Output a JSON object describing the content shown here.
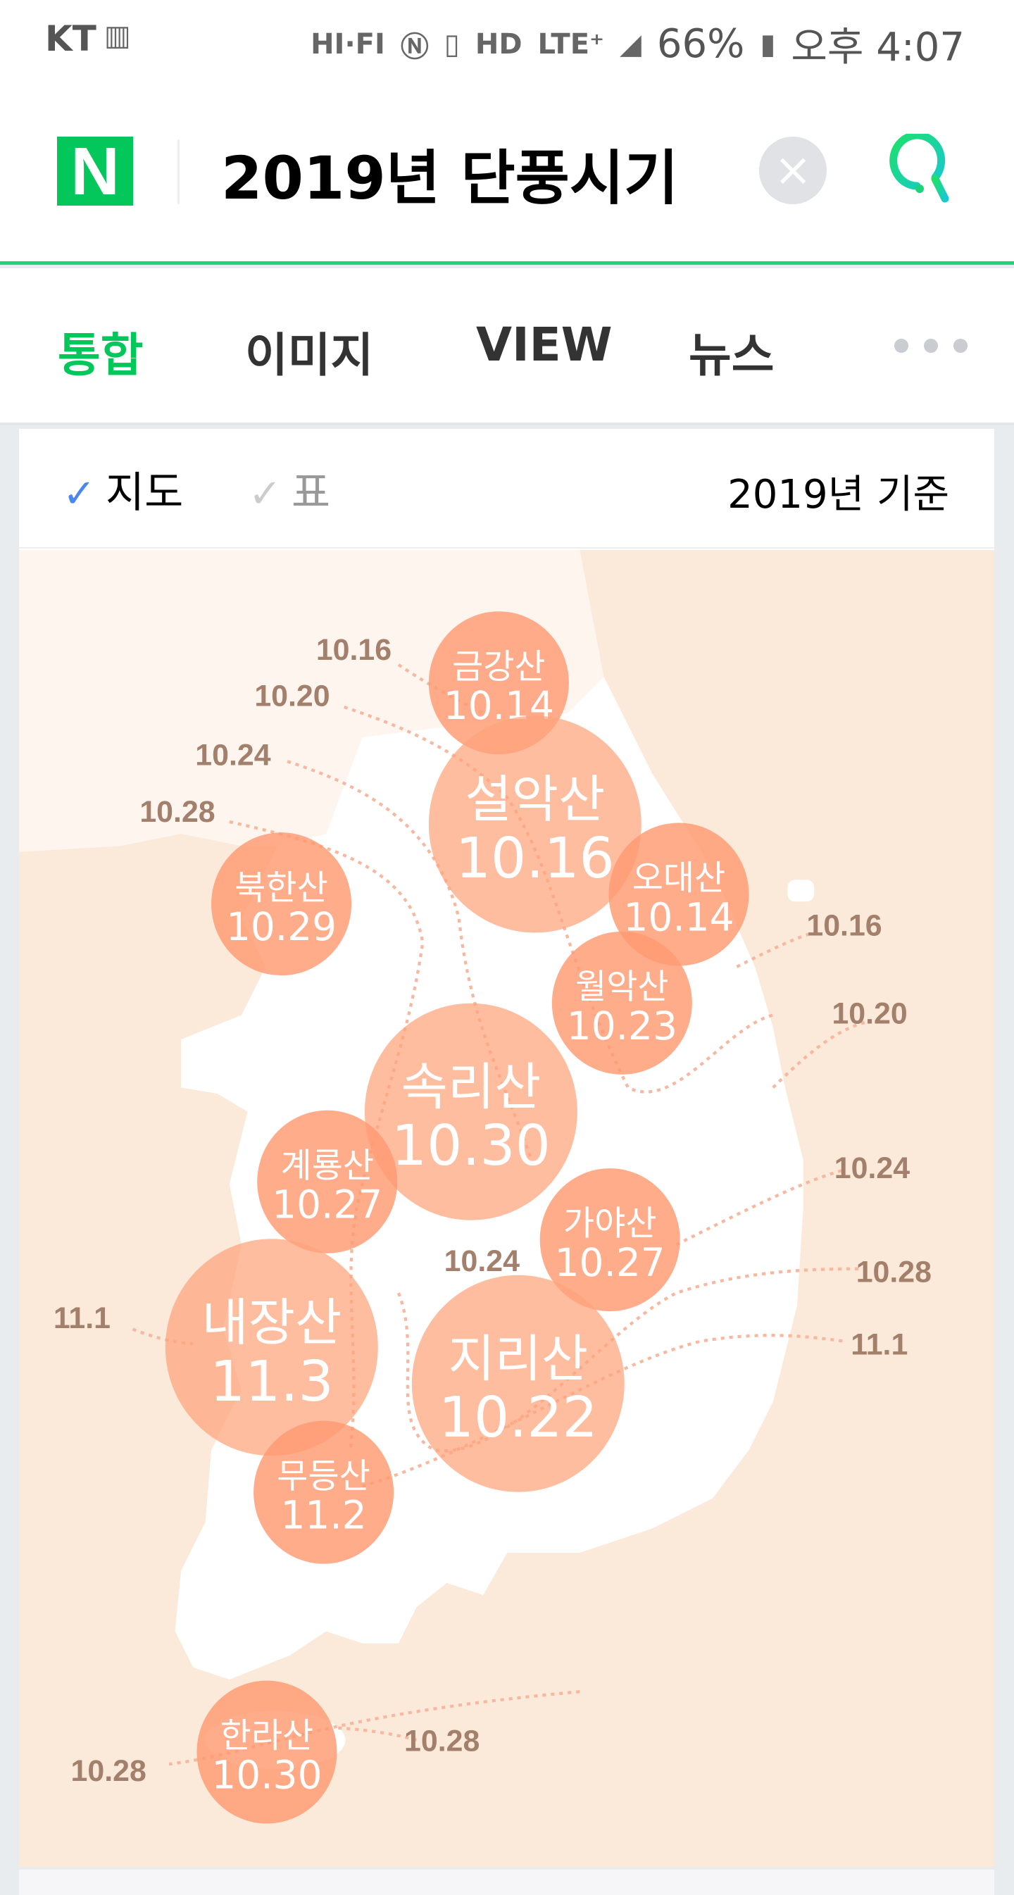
{
  "status_bar": {
    "carrier": "KT",
    "icons": [
      "hifi-icon",
      "nfc-icon",
      "vibrate-icon",
      "hd-voice-icon",
      "lte-plus-icon",
      "signal-icon"
    ],
    "battery": "66%",
    "time": "오후 4:07"
  },
  "header": {
    "logo": "N",
    "query": "2019년 단풍시기",
    "clear_icon": "close-icon",
    "search_icon": "search-icon"
  },
  "tabs": [
    {
      "label": "통합",
      "active": true
    },
    {
      "label": "이미지"
    },
    {
      "label": "VIEW"
    },
    {
      "label": "뉴스"
    }
  ],
  "filter": {
    "options": [
      {
        "label": "지도",
        "checked": true
      },
      {
        "label": "표",
        "checked": false
      }
    ],
    "basis": "2019년 기준"
  },
  "colors": {
    "brand": "#03c75a",
    "sea": "#fbe9d9",
    "land": "#ffffff",
    "circle": "#ff9a72",
    "isoline_label": "#a3806c"
  },
  "map": {
    "mountains": [
      {
        "name": "금강산",
        "date": "10.14",
        "size": "small"
      },
      {
        "name": "설악산",
        "date": "10.16",
        "size": "large"
      },
      {
        "name": "오대산",
        "date": "10.14",
        "size": "small"
      },
      {
        "name": "북한산",
        "date": "10.29",
        "size": "small"
      },
      {
        "name": "월악산",
        "date": "10.23",
        "size": "small"
      },
      {
        "name": "속리산",
        "date": "10.30",
        "size": "large"
      },
      {
        "name": "계룡산",
        "date": "10.27",
        "size": "small"
      },
      {
        "name": "가야산",
        "date": "10.27",
        "size": "small"
      },
      {
        "name": "내장산",
        "date": "11.3",
        "size": "large"
      },
      {
        "name": "지리산",
        "date": "10.22",
        "size": "large"
      },
      {
        "name": "무등산",
        "date": "11.2",
        "size": "small"
      },
      {
        "name": "한라산",
        "date": "10.30",
        "size": "small"
      }
    ],
    "isolines": [
      "10.16",
      "10.20",
      "10.24",
      "10.28",
      "10.16",
      "10.20",
      "10.24",
      "10.24",
      "10.28",
      "11.1",
      "11.1",
      "10.28",
      "10.28"
    ]
  }
}
